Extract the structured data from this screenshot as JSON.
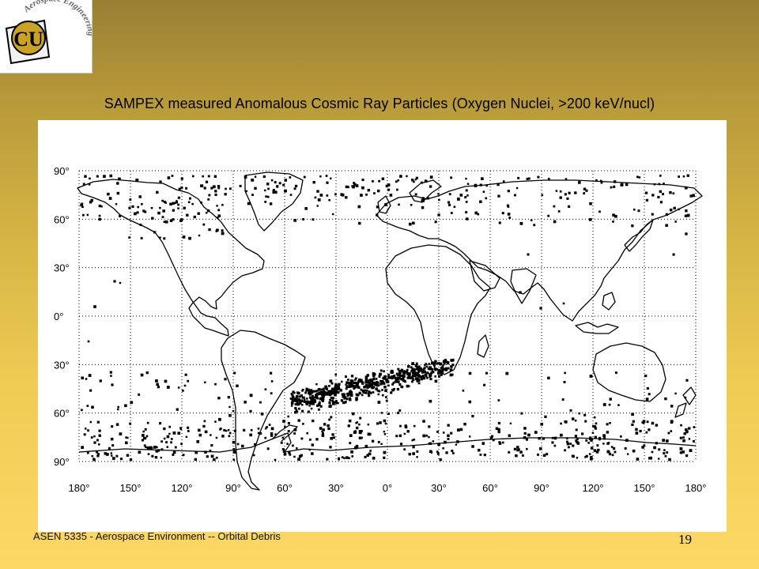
{
  "logo": {
    "monogram": "CU",
    "arc_text": "Aerospace Engineering",
    "colors": {
      "gold": "#c9a227",
      "black": "#000000",
      "state": "#f2f2f2"
    }
  },
  "slide": {
    "title": "SAMPEX measured Anomalous Cosmic Ray Particles  (Oxygen Nuclei, >200 keV/nucl)",
    "footer": "ASEN 5335 - Aerospace Environment -- Orbital Debris",
    "page_number": "19"
  },
  "map": {
    "projection": "equirectangular",
    "lat_labels": [
      "90°",
      "60°",
      "30°",
      "0°",
      "30°",
      "60°",
      "90°"
    ],
    "lon_labels": [
      "180°",
      "150°",
      "120°",
      "90°",
      "60°",
      "30°",
      "0°",
      "30°",
      "60°",
      "90°",
      "120°",
      "150°",
      "180°"
    ],
    "grid": "dotted",
    "features": [
      "coastlines",
      "particle hit dots"
    ],
    "colors": {
      "ink": "#000000",
      "panel": "#ffffff"
    }
  }
}
